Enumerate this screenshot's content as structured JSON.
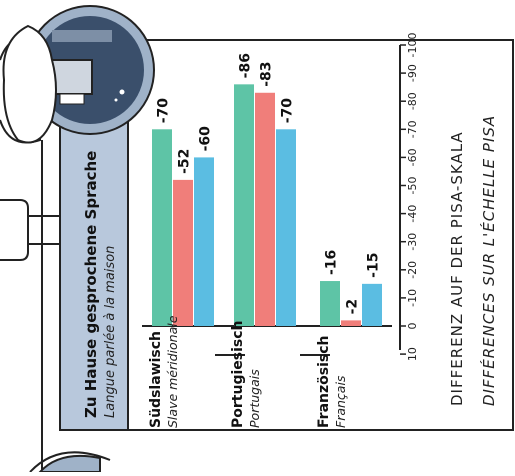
{
  "header": {
    "title": "Zu Hause gesprochene Sprache",
    "subtitle": "Langue parlée à la maison"
  },
  "chart_data": {
    "type": "bar",
    "orientation": "rotated-90-ccw",
    "categories": [
      {
        "de": "Südslawisch",
        "fr": "Slave méridionale"
      },
      {
        "de": "Portugiesisch",
        "fr": "Portugais"
      },
      {
        "de": "Französisch",
        "fr": "Français"
      }
    ],
    "series": [
      {
        "values": [
          -70,
          -86,
          -16
        ],
        "color": "#5ec4a6"
      },
      {
        "values": [
          -52,
          -83,
          -2
        ],
        "color": "#f07e7a"
      },
      {
        "values": [
          -60,
          -70,
          -15
        ],
        "color": "#5bbde2"
      }
    ],
    "value_labels": [
      [
        "-70",
        "-52",
        "-60"
      ],
      [
        "-86",
        "-83",
        "-70"
      ],
      [
        "-16",
        "-2",
        "-15"
      ]
    ],
    "axis": {
      "range": [
        -100,
        10
      ],
      "ticks": [
        "10",
        "0",
        "-10",
        "-20",
        "-30",
        "-40",
        "-50",
        "-60",
        "-70",
        "-80",
        "-90",
        "-100"
      ],
      "title_de": "DIFFERENZ AUF DER PISA-SKALA",
      "title_fr": "DIFFÉRENCES SUR L'ÉCHELLE PISA"
    }
  },
  "colors": {
    "frame": "#222222",
    "header_bg": "#b8c8dc",
    "badge_ring": "#9fb2c8",
    "badge_inner": "#3a4f6b"
  },
  "icons": [
    "language-badge-icon"
  ]
}
